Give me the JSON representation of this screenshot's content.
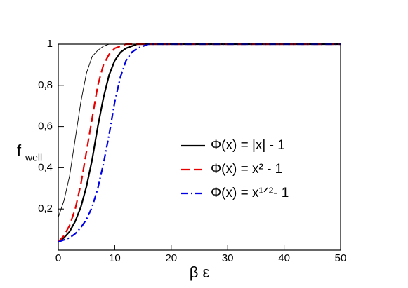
{
  "chart_data": {
    "type": "line",
    "xlabel": "β ε",
    "ylabel": "f",
    "ylabel_sub": "well",
    "x": [
      0,
      1,
      2,
      3,
      4,
      5,
      6,
      7,
      8,
      9,
      10,
      11,
      12,
      13,
      14,
      15,
      16,
      20,
      30,
      40,
      50
    ],
    "series": [
      {
        "name": "Φ(x) = |x| - 1",
        "color": "#000000",
        "width": 2.2,
        "dash": "",
        "values": [
          0.04,
          0.06,
          0.09,
          0.14,
          0.21,
          0.31,
          0.44,
          0.6,
          0.74,
          0.85,
          0.92,
          0.96,
          0.98,
          0.99,
          1.0,
          1.0,
          1.0,
          1.0,
          1.0,
          1.0,
          1.0
        ]
      },
      {
        "name": "Φ(x) = x² - 1",
        "color": "#e60000",
        "width": 2.2,
        "dash": "12 6",
        "values": [
          0.04,
          0.07,
          0.12,
          0.2,
          0.32,
          0.48,
          0.64,
          0.8,
          0.9,
          0.95,
          0.98,
          0.99,
          1.0,
          1.0,
          1.0,
          1.0,
          1.0,
          1.0,
          1.0,
          1.0,
          1.0
        ]
      },
      {
        "name": "Φ(x) = x¹ᐟ²- 1",
        "color": "#0000e6",
        "width": 2.2,
        "dash": "10 4 2 4",
        "values": [
          0.04,
          0.05,
          0.06,
          0.08,
          0.11,
          0.15,
          0.21,
          0.3,
          0.42,
          0.56,
          0.72,
          0.84,
          0.92,
          0.96,
          0.98,
          0.99,
          1.0,
          1.0,
          1.0,
          1.0,
          1.0
        ]
      },
      {
        "color": "#000000",
        "width": 0.9,
        "dash": "",
        "values": [
          0.16,
          0.24,
          0.36,
          0.54,
          0.72,
          0.86,
          0.94,
          0.97,
          0.99,
          1.0,
          1.0,
          1.0,
          1.0,
          1.0,
          1.0,
          1.0,
          1.0,
          1.0,
          1.0,
          1.0,
          1.0
        ]
      }
    ],
    "xlim": [
      0,
      50
    ],
    "xticks": [
      0,
      10,
      20,
      30,
      40,
      50
    ],
    "ylim": [
      0,
      1
    ],
    "yticks": [
      {
        "value": 0.2,
        "label": "0,2"
      },
      {
        "value": 0.4,
        "label": "0,4"
      },
      {
        "value": 0.6,
        "label": "0,6"
      },
      {
        "value": 0.8,
        "label": "0,8"
      },
      1
    ],
    "grid": false
  }
}
